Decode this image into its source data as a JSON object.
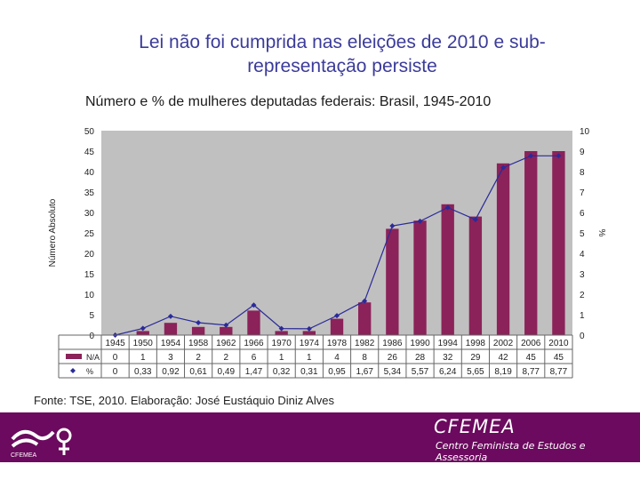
{
  "title": "Lei não foi cumprida nas eleições de 2010 e sub-representação persiste",
  "footer": {
    "source": "Fonte: TSE, 2010. Elaboração: José Eustáquio Diniz Alves",
    "org_name": "CFEMEA",
    "org_full": "Centro Feminista de Estudos e Assessoria",
    "logo_caption": "CFEMEA",
    "bg_color": "#6b0a5e"
  },
  "chart_data": {
    "type": "bar",
    "title": "Número e % de mulheres deputadas federais: Brasil, 1945-2010",
    "xlabel": "",
    "ylabel": "Número Absoluto",
    "ylabel_right": "%",
    "ylim": [
      0,
      50
    ],
    "ylim_right": [
      0,
      10
    ],
    "yticks": [
      0,
      5,
      10,
      15,
      20,
      25,
      30,
      35,
      40,
      45,
      50
    ],
    "yticks_right": [
      0,
      1,
      2,
      3,
      4,
      5,
      6,
      7,
      8,
      9,
      10
    ],
    "categories": [
      "1945",
      "1950",
      "1954",
      "1958",
      "1962",
      "1966",
      "1970",
      "1974",
      "1978",
      "1982",
      "1986",
      "1990",
      "1994",
      "1998",
      "2002",
      "2006",
      "2010"
    ],
    "series": [
      {
        "name": "N/A",
        "kind": "bar",
        "axis": "left",
        "color": "#8b2259",
        "values": [
          0,
          1,
          3,
          2,
          2,
          6,
          1,
          1,
          4,
          8,
          26,
          28,
          32,
          29,
          42,
          45,
          45
        ],
        "labels": [
          "0",
          "1",
          "3",
          "2",
          "2",
          "6",
          "1",
          "1",
          "4",
          "8",
          "26",
          "28",
          "32",
          "29",
          "42",
          "45",
          "45"
        ]
      },
      {
        "name": "%",
        "kind": "line",
        "axis": "right",
        "color": "#2a2a9a",
        "values": [
          0,
          0.33,
          0.92,
          0.61,
          0.49,
          1.47,
          0.32,
          0.31,
          0.95,
          1.67,
          5.34,
          5.57,
          6.24,
          5.65,
          8.19,
          8.77,
          8.77
        ],
        "labels": [
          "0",
          "0,33",
          "0,92",
          "0,61",
          "0,49",
          "1,47",
          "0,32",
          "0,31",
          "0,95",
          "1,67",
          "5,34",
          "5,57",
          "6,24",
          "5,65",
          "8,19",
          "8,77",
          "8,77"
        ]
      }
    ],
    "plot_bg": "#c0c0c0",
    "grid": false,
    "legend": "table-below"
  }
}
